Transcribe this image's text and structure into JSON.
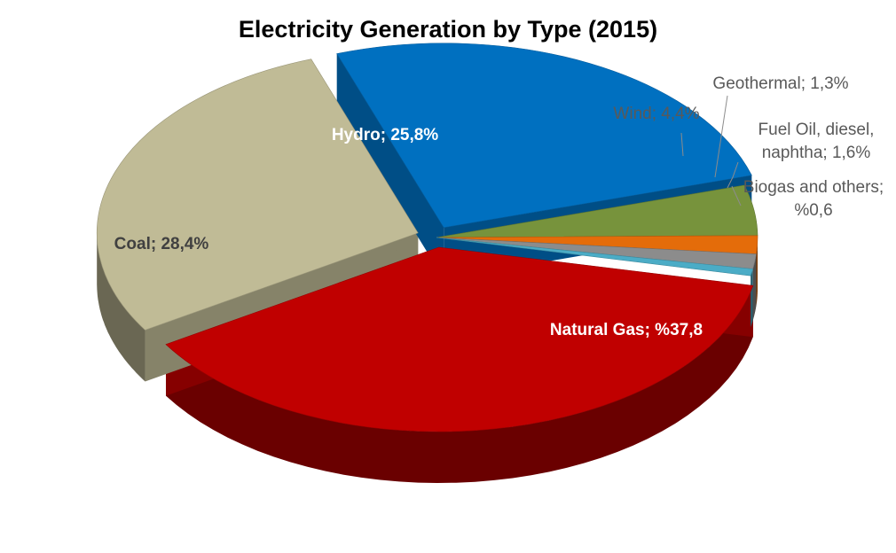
{
  "chart_data": {
    "type": "pie",
    "title": "Electricity Generation by Type (2015)",
    "three_d": true,
    "slices": [
      {
        "name": "Natural Gas",
        "value": 37.8,
        "label": "Natural Gas; %37,8",
        "color": "#c00000",
        "exploded": true
      },
      {
        "name": "Coal",
        "value": 28.4,
        "label": "Coal; 28,4%",
        "color": "#c0bb96",
        "exploded": true
      },
      {
        "name": "Hydro",
        "value": 25.8,
        "label": "Hydro; 25,8%",
        "color": "#0070c0",
        "exploded": true
      },
      {
        "name": "Wind",
        "value": 4.4,
        "label": "Wind; 4,4%",
        "color": "#77933c",
        "exploded": false
      },
      {
        "name": "Fuel Oil, diesel, naphtha",
        "value": 1.6,
        "label": "Fuel Oil, diesel,\nnaphtha; 1,6%",
        "color": "#e46c0a",
        "exploded": false
      },
      {
        "name": "Geothermal",
        "value": 1.3,
        "label": "Geothermal; 1,3%",
        "color": "#8c8c8c",
        "exploded": false
      },
      {
        "name": "Biogas and others",
        "value": 0.6,
        "label": "Biogas and others;\n%0,6",
        "color": "#4bacc6",
        "exploded": false
      }
    ]
  }
}
